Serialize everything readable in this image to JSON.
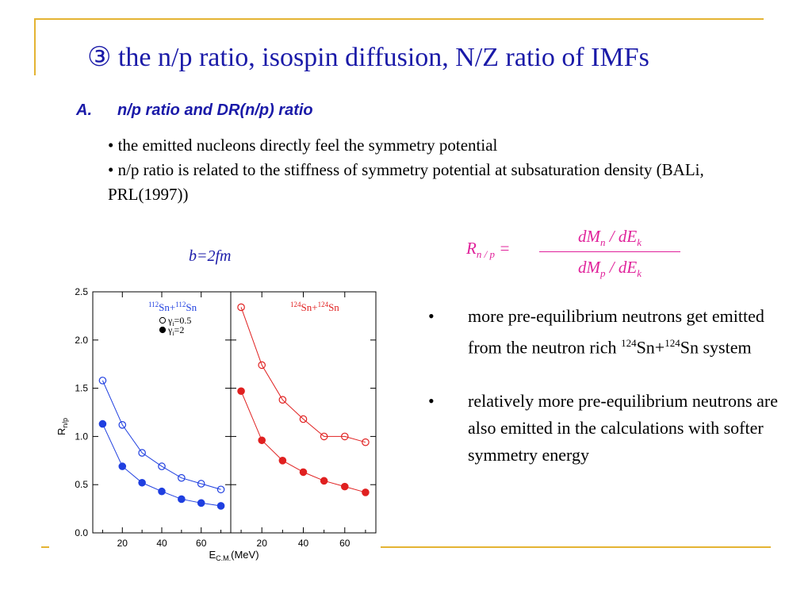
{
  "slide": {
    "title": "③ the n/p ratio, isospin diffusion, N/Z ratio of IMFs",
    "section": {
      "label": "A.",
      "text": "n/p ratio and DR(n/p) ratio"
    },
    "bullets_top": [
      "• the emitted nucleons directly feel the symmetry potential",
      "• n/p ratio is related to the stiffness of symmetry potential at subsaturation density (BALi, PRL(1997))"
    ],
    "impact_param": "b=2fm",
    "formula": {
      "lhs_R": "R",
      "lhs_sub": "n / p",
      "equals": "=",
      "num_a": "dM",
      "num_sub": "n",
      "num_b": "/ dE",
      "num_sub2": "k",
      "den_a": "dM",
      "den_sub": "p",
      "den_b": "/ dE",
      "den_sub2": "k"
    },
    "bullets_right": [
      {
        "bullet": "•",
        "text_a": "more pre-equilibrium neutrons get emitted from the neutron rich ",
        "sup1": "124",
        "text_b": "Sn+",
        "sup2": "124",
        "text_c": "Sn system"
      },
      {
        "bullet": "•",
        "text_a": "relatively more pre-equilibrium neutrons are also emitted in the calculations with softer symmetry energy"
      }
    ],
    "colors": {
      "gold": "#e4b433",
      "title_blue": "#1a1aa8",
      "formula_magenta": "#e0219a",
      "series_blue": "#1f3fe0",
      "series_red": "#e02020"
    }
  },
  "chart_data": [
    {
      "type": "line",
      "title_parts": [
        "112",
        "Sn+",
        "112",
        "Sn"
      ],
      "xlabel": "E",
      "xlabel_sub": "C.M.",
      "xlabel_unit": "(MeV)",
      "ylabel": "R",
      "ylabel_sub": "n/p",
      "xlim": [
        5,
        75
      ],
      "ylim": [
        0.0,
        2.5
      ],
      "xticks": [
        "20",
        "40",
        "60"
      ],
      "yticks": [
        "0.0",
        "0.5",
        "1.0",
        "1.5",
        "2.0",
        "2.5"
      ],
      "legend": [
        {
          "symbol": "○",
          "label": "γ",
          "sub": "i",
          "value": "=0.5"
        },
        {
          "symbol": "●",
          "label": "γ",
          "sub": "i",
          "value": "=2"
        }
      ],
      "series": [
        {
          "name": "γi=0.5",
          "marker": "open",
          "x": [
            10,
            20,
            30,
            40,
            50,
            60,
            70
          ],
          "y": [
            1.58,
            1.12,
            0.83,
            0.69,
            0.57,
            0.51,
            0.45
          ]
        },
        {
          "name": "γi=2",
          "marker": "filled",
          "x": [
            10,
            20,
            30,
            40,
            50,
            60,
            70
          ],
          "y": [
            1.13,
            0.69,
            0.52,
            0.43,
            0.35,
            0.31,
            0.28
          ]
        }
      ]
    },
    {
      "type": "line",
      "title_parts": [
        "124",
        "Sn+",
        "124",
        "Sn"
      ],
      "xlim": [
        5,
        75
      ],
      "ylim": [
        0.0,
        2.5
      ],
      "xticks": [
        "20",
        "40",
        "60"
      ],
      "series": [
        {
          "name": "γi=0.5",
          "marker": "open",
          "x": [
            10,
            20,
            30,
            40,
            50,
            60,
            70
          ],
          "y": [
            2.34,
            1.74,
            1.38,
            1.18,
            1.0,
            1.0,
            0.94
          ]
        },
        {
          "name": "γi=2",
          "marker": "filled",
          "x": [
            10,
            20,
            30,
            40,
            50,
            60,
            70
          ],
          "y": [
            1.47,
            0.96,
            0.75,
            0.63,
            0.54,
            0.48,
            0.42
          ]
        }
      ]
    }
  ]
}
